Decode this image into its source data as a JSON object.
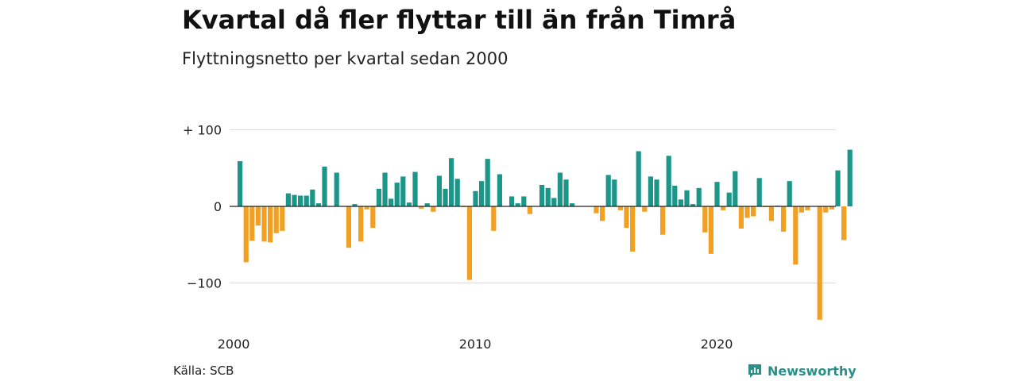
{
  "title": "Kvartal då fler flyttar till än från Timrå",
  "subtitle": "Flyttningsnetto per kvartal sedan 2000",
  "source": "Källa: SCB",
  "brand": {
    "name": "Newsworthy",
    "icon": "newsworthy-logo-icon"
  },
  "colors": {
    "positive": "#1b9688",
    "negative": "#f2a022",
    "grid": "#dddddd",
    "zero": "#222222"
  },
  "chart_data": {
    "type": "bar",
    "x_start": 2000,
    "x_step": "quarter",
    "x_tick_labels": [
      "2000",
      "2010",
      "2020"
    ],
    "y_tick_labels": [
      "+ 100",
      "0",
      "−100"
    ],
    "y_ticks": [
      100,
      0,
      -100
    ],
    "ylim": [
      -150,
      100
    ],
    "grid": true,
    "series": [
      {
        "values": [
          59,
          -73,
          -45,
          -25,
          -46,
          -47,
          -35,
          -32,
          17,
          15,
          14,
          14,
          22,
          4,
          52,
          0,
          44,
          0,
          -54,
          3,
          -46,
          -4,
          -28,
          23,
          44,
          10,
          31,
          39,
          5,
          45,
          -3,
          4,
          -7,
          40,
          23,
          63,
          36,
          -1,
          -96,
          20,
          33,
          62,
          -32,
          42,
          0,
          13,
          4,
          13,
          -10,
          0,
          28,
          24,
          11,
          44,
          35,
          4,
          0,
          0,
          0,
          -9,
          -19,
          41,
          35,
          -5,
          -28,
          -59,
          72,
          -7,
          39,
          35,
          -37,
          66,
          27,
          9,
          21,
          3,
          24,
          -34,
          -62,
          32,
          -5,
          18,
          46,
          -29,
          -15,
          -13,
          37,
          -1,
          -19,
          1,
          -33,
          33,
          -76,
          -8,
          -5,
          0,
          -148,
          -8,
          -4,
          47,
          -44,
          74
        ]
      }
    ]
  }
}
